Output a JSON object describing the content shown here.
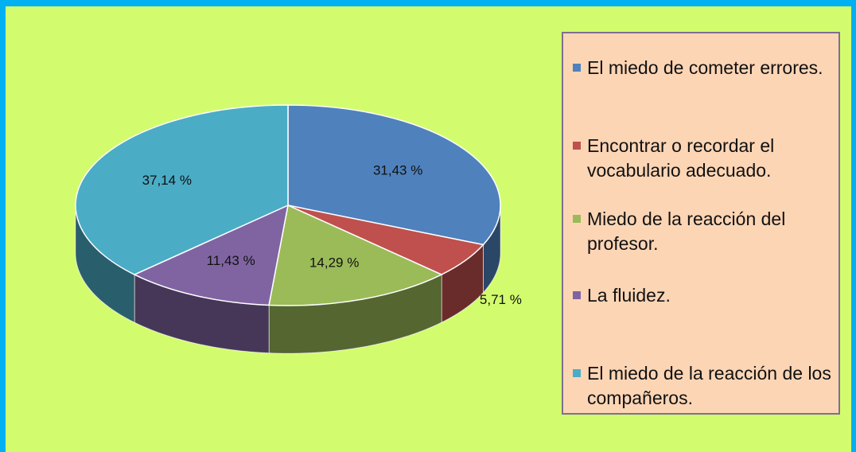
{
  "chart_data": {
    "type": "pie",
    "categories": [
      "El miedo de cometer errores.",
      "Encontrar o recordar el vocabulario adecuado.",
      "Miedo de la reacción del profesor.",
      "La fluidez.",
      "El miedo de la reacción de los compañeros."
    ],
    "values": [
      31.43,
      5.71,
      14.29,
      11.43,
      37.14
    ],
    "value_labels": [
      "31,43 %",
      "5,71 %",
      "14,29 %",
      "11,43 %",
      "37,14 %"
    ],
    "colors": [
      "#4f81bd",
      "#c0504d",
      "#9bbb59",
      "#8064a2",
      "#4bacc6"
    ],
    "legend": "right"
  }
}
